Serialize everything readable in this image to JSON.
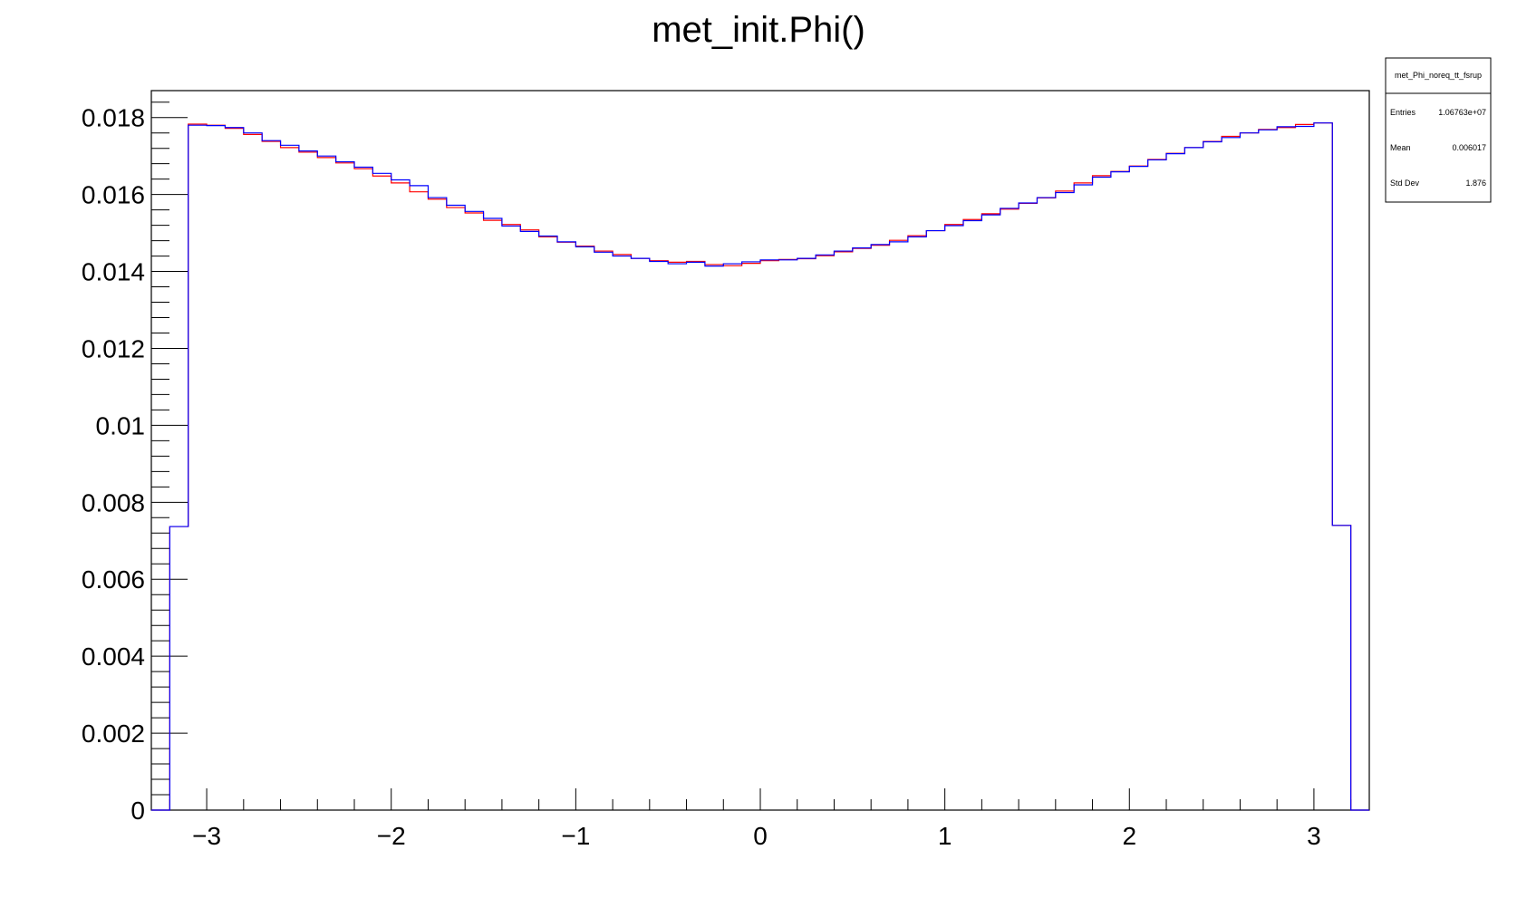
{
  "chart_data": {
    "type": "histogram",
    "title": "met_init.Phi()",
    "xlabel": "",
    "ylabel": "",
    "xlim": [
      -3.3,
      3.3
    ],
    "ylim": [
      0,
      0.0187
    ],
    "x_ticks": [
      {
        "value": -3,
        "label": "−3"
      },
      {
        "value": -2,
        "label": "−2"
      },
      {
        "value": -1,
        "label": "−1"
      },
      {
        "value": 0,
        "label": "0"
      },
      {
        "value": 1,
        "label": "1"
      },
      {
        "value": 2,
        "label": "2"
      },
      {
        "value": 3,
        "label": "3"
      }
    ],
    "y_ticks": [
      {
        "value": 0,
        "label": "0"
      },
      {
        "value": 0.002,
        "label": "0.002"
      },
      {
        "value": 0.004,
        "label": "0.004"
      },
      {
        "value": 0.006,
        "label": "0.006"
      },
      {
        "value": 0.008,
        "label": "0.008"
      },
      {
        "value": 0.01,
        "label": "0.01"
      },
      {
        "value": 0.012,
        "label": "0.012"
      },
      {
        "value": 0.014,
        "label": "0.014"
      },
      {
        "value": 0.016,
        "label": "0.016"
      },
      {
        "value": 0.018,
        "label": "0.018"
      }
    ],
    "bin_edges_start": -3.3,
    "bin_width": 0.1,
    "series": [
      {
        "color": "#ff0000",
        "values": [
          0.0,
          0.00737,
          0.01783,
          0.0178,
          0.01772,
          0.01756,
          0.01738,
          0.01722,
          0.0171,
          0.01696,
          0.01682,
          0.01667,
          0.01648,
          0.0163,
          0.01607,
          0.01588,
          0.01566,
          0.01552,
          0.01533,
          0.01522,
          0.01508,
          0.0149,
          0.01476,
          0.01466,
          0.01453,
          0.01444,
          0.01434,
          0.01428,
          0.01424,
          0.01426,
          0.01418,
          0.01415,
          0.01421,
          0.01428,
          0.01431,
          0.01433,
          0.01441,
          0.01451,
          0.0146,
          0.01468,
          0.01481,
          0.01493,
          0.01506,
          0.01522,
          0.01535,
          0.0155,
          0.01562,
          0.01577,
          0.01591,
          0.01609,
          0.0163,
          0.01649,
          0.0166,
          0.01674,
          0.01691,
          0.01707,
          0.01722,
          0.01738,
          0.01751,
          0.0176,
          0.01769,
          0.01774,
          0.01782,
          0.01786,
          0.0074,
          0.0
        ]
      },
      {
        "color": "#0000ff",
        "values": [
          0.0,
          0.00737,
          0.0178,
          0.01779,
          0.01774,
          0.0176,
          0.0174,
          0.01728,
          0.01713,
          0.017,
          0.01685,
          0.01671,
          0.01655,
          0.01638,
          0.01623,
          0.01592,
          0.01572,
          0.01556,
          0.01538,
          0.01518,
          0.01504,
          0.01492,
          0.01477,
          0.01464,
          0.0145,
          0.0144,
          0.01434,
          0.01426,
          0.0142,
          0.01424,
          0.01414,
          0.0142,
          0.01425,
          0.0143,
          0.0143,
          0.01434,
          0.01443,
          0.01453,
          0.01461,
          0.0147,
          0.01477,
          0.0149,
          0.01506,
          0.01519,
          0.01532,
          0.01547,
          0.01564,
          0.01578,
          0.01592,
          0.01605,
          0.01625,
          0.01645,
          0.01659,
          0.01673,
          0.0169,
          0.01706,
          0.01722,
          0.01737,
          0.01748,
          0.0176,
          0.01768,
          0.01776,
          0.01777,
          0.01786,
          0.0074,
          0.0
        ]
      }
    ],
    "legend": "none"
  },
  "stats_box": {
    "name": "met_Phi_noreq_tt_fsrup",
    "rows": [
      {
        "label": "Entries",
        "value": "1.06763e+07"
      },
      {
        "label": "Mean",
        "value": "0.006017"
      },
      {
        "label": "Std Dev",
        "value": "1.876"
      }
    ]
  }
}
